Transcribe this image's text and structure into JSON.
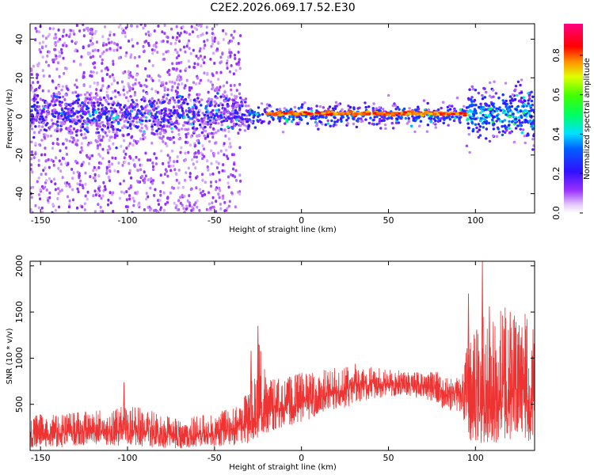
{
  "title": "C2E2.2026.069.17.52.E30",
  "colors": {
    "snr_line": "#ee3333",
    "axis": "#000000",
    "background": "#ffffff"
  },
  "chart_data": [
    {
      "type": "heatmap",
      "name": "spectrogram",
      "xlabel": "Height of straight line (km)",
      "ylabel": "Frequency (Hz)",
      "xlim": [
        -156,
        134
      ],
      "ylim": [
        -50,
        48
      ],
      "xticks": [
        -150,
        -100,
        -50,
        0,
        50,
        100
      ],
      "yticks": [
        -40,
        -20,
        0,
        20,
        40
      ],
      "colorbar": {
        "label": "Normalized spectral amplitude",
        "range": [
          0,
          0.96
        ],
        "ticks": [
          "0.0",
          "0.2",
          "0.4",
          "0.6",
          "0.8"
        ],
        "colormap": "rainbow (purple→blue→cyan→green→yellow→red→magenta)"
      },
      "features": [
        {
          "x_range": [
            -156,
            -35
          ],
          "freq_range": [
            -50,
            48
          ],
          "amplitude": 0.05,
          "note": "sparse broadband noise"
        },
        {
          "x_range": [
            -156,
            -30
          ],
          "freq_range": [
            -10,
            12
          ],
          "amplitude": 0.2
        },
        {
          "x_range": [
            -30,
            95
          ],
          "freq_range": [
            -5,
            6
          ],
          "amplitude": 0.3
        },
        {
          "x_range": [
            -20,
            95
          ],
          "freq_range": [
            0,
            3
          ],
          "amplitude": 0.9,
          "note": "narrow tone near 2 Hz"
        },
        {
          "x_range": [
            95,
            134
          ],
          "freq_range": [
            -12,
            14
          ],
          "amplitude": 0.35
        }
      ],
      "grid": false
    },
    {
      "type": "line",
      "name": "snr",
      "xlabel": "Height of straight line (km)",
      "ylabel": "SNR (10 * v/v)",
      "xlim": [
        -156,
        134
      ],
      "ylim": [
        0,
        2050
      ],
      "xticks": [
        -150,
        -100,
        -50,
        0,
        50,
        100
      ],
      "yticks": [
        500,
        1000,
        1500,
        2000
      ],
      "series": [
        {
          "x": [
            -156,
            -150,
            -140,
            -130,
            -120,
            -110,
            -100,
            -90,
            -80,
            -70,
            -60,
            -50,
            -40,
            -35,
            -30,
            -25,
            -20,
            -15,
            -10,
            -5,
            0,
            10,
            20,
            30,
            40,
            50,
            60,
            70,
            78,
            82,
            88,
            92,
            96,
            100,
            105,
            110,
            115,
            120,
            125,
            130,
            134
          ],
          "y": [
            170,
            180,
            160,
            200,
            220,
            200,
            220,
            210,
            170,
            130,
            170,
            190,
            230,
            260,
            300,
            350,
            420,
            460,
            470,
            480,
            520,
            560,
            610,
            700,
            720,
            720,
            710,
            710,
            700,
            640,
            620,
            620,
            520,
            480,
            480,
            500,
            520,
            560,
            540,
            520,
            500
          ],
          "upper": [
            350,
            400,
            380,
            420,
            450,
            450,
            480,
            460,
            420,
            330,
            380,
            400,
            480,
            520,
            700,
            1300,
            800,
            800,
            780,
            820,
            850,
            870,
            900,
            950,
            920,
            880,
            860,
            850,
            860,
            820,
            800,
            820,
            1200,
            1300,
            1500,
            1400,
            1600,
            1500,
            1500,
            1500,
            1300
          ],
          "lower": [
            30,
            40,
            30,
            40,
            60,
            50,
            50,
            40,
            30,
            20,
            30,
            40,
            40,
            60,
            80,
            100,
            180,
            220,
            250,
            280,
            300,
            380,
            420,
            500,
            560,
            580,
            580,
            560,
            520,
            440,
            420,
            420,
            100,
            80,
            80,
            80,
            100,
            90,
            100,
            90,
            100
          ],
          "peaks": [
            {
              "x": -102,
              "y": 740
            },
            {
              "x": -25,
              "y": 1350
            },
            {
              "x": -29,
              "y": 1080
            },
            {
              "x": 96,
              "y": 1700
            },
            {
              "x": 104,
              "y": 2050
            },
            {
              "x": 108,
              "y": 1560
            },
            {
              "x": 120,
              "y": 1500
            }
          ]
        }
      ],
      "grid": false
    }
  ]
}
